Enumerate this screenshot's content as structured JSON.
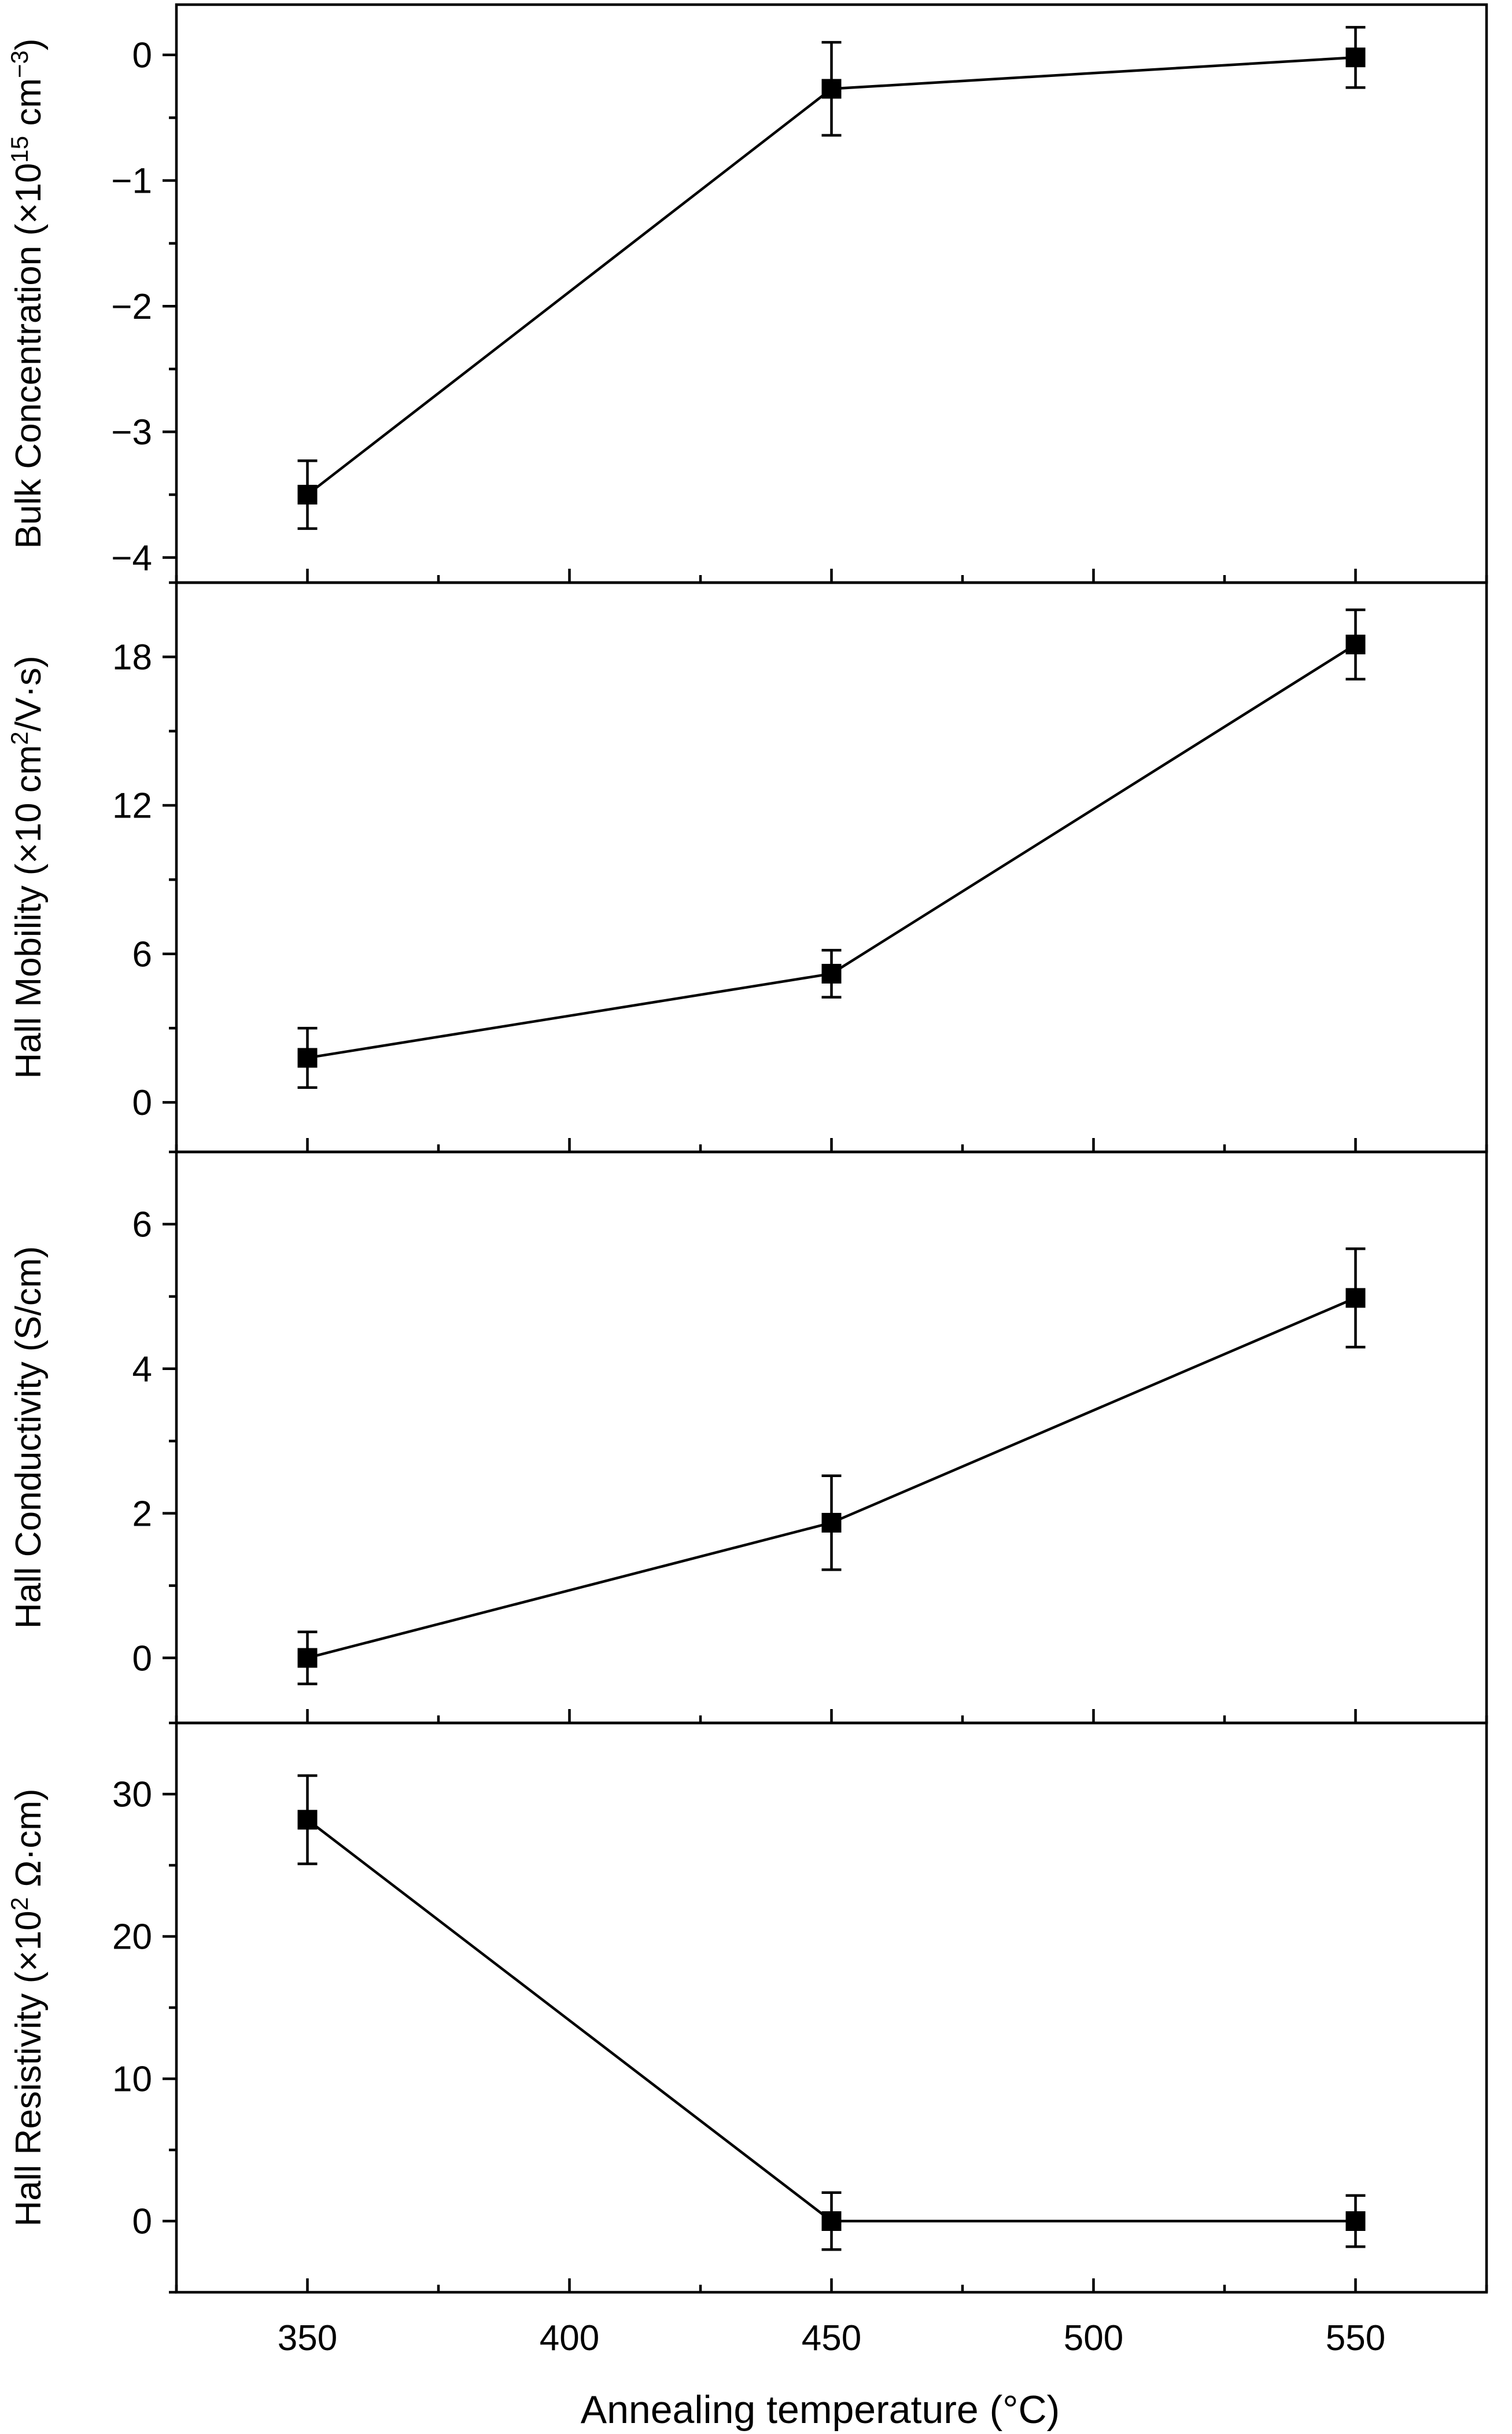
{
  "chart_data": {
    "type": "line",
    "shared_x": true,
    "x": [
      350,
      450,
      550
    ],
    "xlim": [
      325,
      575
    ],
    "x_major_ticks": [
      350,
      400,
      450,
      500,
      550
    ],
    "x_tick_labels": [
      "350",
      "400",
      "450",
      "500",
      "550"
    ],
    "xlabel": "Annealing temperature (°C)",
    "grid": false,
    "legend": "none",
    "marker": "filled-square",
    "line_color": "#000000",
    "panels": [
      {
        "ylabel": "Bulk Concentration (×10",
        "ylabel_sup": "15",
        "ylabel_tail": " cm",
        "ylabel_sup2": "−3",
        "ylabel_end": ")",
        "ylim": [
          -4.2,
          0.4
        ],
        "y_major_ticks": [
          -4,
          -3,
          -2,
          -1,
          0
        ],
        "y_tick_labels": [
          "−4",
          "−3",
          "−2",
          "−1",
          "0"
        ],
        "y": [
          -3.5,
          -0.27,
          -0.02
        ],
        "error": [
          0.27,
          0.37,
          0.24
        ]
      },
      {
        "ylabel": "Hall Mobility (×10 cm",
        "ylabel_sup": "2",
        "ylabel_tail": "/V·s)",
        "ylabel_sup2": "",
        "ylabel_end": "",
        "ylim": [
          -2,
          21
        ],
        "y_major_ticks": [
          0,
          6,
          12,
          18
        ],
        "y_tick_labels": [
          "0",
          "6",
          "12",
          "18"
        ],
        "y": [
          1.8,
          5.2,
          18.5
        ],
        "error": [
          1.2,
          0.95,
          1.4
        ]
      },
      {
        "ylabel": "Hall Conductivity (S/cm)",
        "ylabel_sup": "",
        "ylabel_tail": "",
        "ylabel_sup2": "",
        "ylabel_end": "",
        "ylim": [
          -0.9,
          7.0
        ],
        "y_major_ticks": [
          0,
          2,
          4,
          6
        ],
        "y_tick_labels": [
          "0",
          "2",
          "4",
          "6"
        ],
        "y": [
          0.0,
          1.87,
          4.98
        ],
        "error": [
          0.36,
          0.65,
          0.68
        ]
      },
      {
        "ylabel": "Hall Resistivity (×10",
        "ylabel_sup": "2",
        "ylabel_tail": " Ω·cm)",
        "ylabel_sup2": "",
        "ylabel_end": "",
        "ylim": [
          -5,
          35
        ],
        "y_major_ticks": [
          0,
          10,
          20,
          30
        ],
        "y_tick_labels": [
          "0",
          "10",
          "20",
          "30"
        ],
        "y": [
          28.2,
          0.0,
          0.0
        ],
        "error": [
          3.1,
          2.0,
          1.8
        ]
      }
    ]
  }
}
